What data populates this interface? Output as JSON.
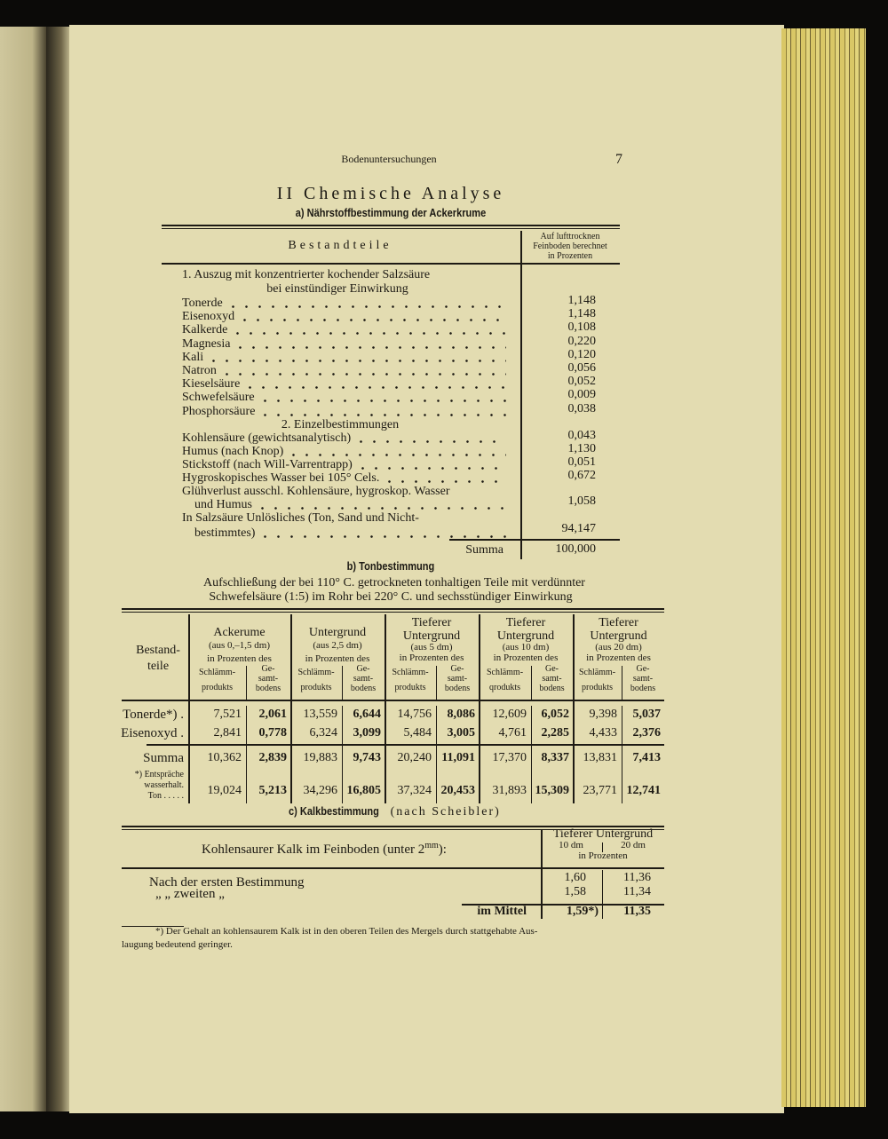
{
  "header": {
    "running_title": "Bodenuntersuchungen",
    "page_number": "7"
  },
  "title": "II Chemische Analyse",
  "section_a": {
    "title": "a) Nährstoffbestimmung der Ackerkrume",
    "col_label": "Bestandteile",
    "col_value": [
      "Auf lufttrocknen",
      "Feinboden berechnet",
      "in Prozenten"
    ],
    "group1": [
      "1. Auszug mit konzentrierter kochender Salzsäure",
      "bei einstündiger Einwirkung"
    ],
    "rows1": [
      {
        "label": "Tonerde",
        "value": "1,148"
      },
      {
        "label": "Eisenoxyd",
        "value": "1,148"
      },
      {
        "label": "Kalkerde",
        "value": "0,108"
      },
      {
        "label": "Magnesia",
        "value": "0,220"
      },
      {
        "label": "Kali",
        "value": "0,120"
      },
      {
        "label": "Natron",
        "value": "0,056"
      },
      {
        "label": "Kieselsäure",
        "value": "0,052"
      },
      {
        "label": "Schwefelsäure",
        "value": "0,009"
      },
      {
        "label": "Phosphorsäure",
        "value": "0,038"
      }
    ],
    "group2": "2. Einzelbestimmungen",
    "rows2": [
      {
        "label": "Kohlensäure (gewichtsanalytisch)",
        "value": "0,043"
      },
      {
        "label": "Humus (nach Knop)",
        "value": "1,130"
      },
      {
        "label": "Stickstoff (nach Will-Varrentrapp)",
        "value": "0,051"
      },
      {
        "label": "Hygroskopisches Wasser bei 105° Cels.",
        "value": "0,672"
      },
      {
        "label": "Glühverlust ausschl. Kohlensäure, hygroskop. Wasser",
        "label2": "und Humus",
        "value": "1,058"
      },
      {
        "label": "In Salzsäure Unlösliches (Ton, Sand und Nicht-",
        "label2": "bestimmtes)",
        "value": "94,147"
      }
    ],
    "summa_label": "Summa",
    "summa": "100,000"
  },
  "section_b": {
    "title": "b) Tonbestimmung",
    "intro": [
      "Aufschließung der bei 110° C. getrockneten tonhaltigen Teile mit verdünnter",
      "Schwefelsäure (1:5) im Rohr bei 220° C. und sechsstündiger Einwirkung"
    ],
    "row_header": [
      "Bestand-",
      "teile"
    ],
    "groups": [
      {
        "title": [
          "Ackerume"
        ],
        "depth": "(aus 0,–1,5 dm)",
        "basis": "in Prozenten des",
        "sub1": [
          "Schlämm-",
          "produkts"
        ],
        "sub2": [
          "Ge-",
          "samt-",
          "bodens"
        ]
      },
      {
        "title": [
          "Untergrund"
        ],
        "depth": "(aus 2,5 dm)",
        "basis": "in Prozenten des",
        "sub1": [
          "Schlämm-",
          "produkts"
        ],
        "sub2": [
          "Ge-",
          "samt-",
          "bodens"
        ]
      },
      {
        "title": [
          "Tieferer",
          "Untergrund"
        ],
        "depth": "(aus 5 dm)",
        "basis": "in Prozenten des",
        "sub1": [
          "Schlämm-",
          "produkts"
        ],
        "sub2": [
          "Ge-",
          "samt-",
          "bodens"
        ]
      },
      {
        "title": [
          "Tieferer",
          "Untergrund"
        ],
        "depth": "(aus 10 dm)",
        "basis": "in Prozenten des",
        "sub1": [
          "Schlämm-",
          "qrodukts"
        ],
        "sub2": [
          "Ge-",
          "samt-",
          "bodens"
        ]
      },
      {
        "title": [
          "Tieferer",
          "Untergrund"
        ],
        "depth": "(aus 20 dm)",
        "basis": "in Prozenten des",
        "sub1": [
          "Schlämm-",
          "produkts"
        ],
        "sub2": [
          "Ge-",
          "samt-",
          "bodens"
        ]
      }
    ],
    "rows": [
      {
        "label": "Tonerde*) .",
        "values": [
          "7,521",
          "2,061",
          "13,559",
          "6,644",
          "14,756",
          "8,086",
          "12,609",
          "6,052",
          "9,398",
          "5,037"
        ]
      },
      {
        "label": "Eisenoxyd .",
        "values": [
          "2,841",
          "0,778",
          "6,324",
          "3,099",
          "5,484",
          "3,005",
          "4,761",
          "2,285",
          "4,433",
          "2,376"
        ]
      },
      {
        "label": "Summa",
        "values": [
          "10,362",
          "2,839",
          "19,883",
          "9,743",
          "20,240",
          "11,091",
          "17,370",
          "8,337",
          "13,831",
          "7,413"
        ]
      },
      {
        "label": [
          "*) Entspräche",
          "wasserhalt.",
          "Ton . . . . ."
        ],
        "values": [
          "19,024",
          "5,213",
          "34,296",
          "16,805",
          "37,324",
          "20,453",
          "31,893",
          "15,309",
          "23,771",
          "12,741"
        ]
      }
    ]
  },
  "section_c": {
    "title": "c) Kalkbestimmung",
    "title_suffix": "(nach Scheibler)",
    "header": "Kohlensaurer Kalk im Feinboden (unter 2",
    "header_sup": "mm",
    "header_end": "):",
    "col_group": "Tieferer Untergrund",
    "cols": [
      "10 dm",
      "20 dm"
    ],
    "col_unit": "in Prozenten",
    "rows": [
      {
        "label": "Nach der ersten Bestimmung",
        "values": [
          "1,60",
          "11,36"
        ]
      },
      {
        "label": "„   „   zweiten        „",
        "values": [
          "1,58",
          "11,34"
        ]
      }
    ],
    "mean_label": "im Mittel",
    "mean": [
      "1,59*)",
      "11,35"
    ]
  },
  "footnote": [
    "*) Der Gehalt an kohlensaurem Kalk ist in den oberen Teilen des Mergels durch stattgehabte Aus-",
    "laugung bedeutend geringer."
  ]
}
